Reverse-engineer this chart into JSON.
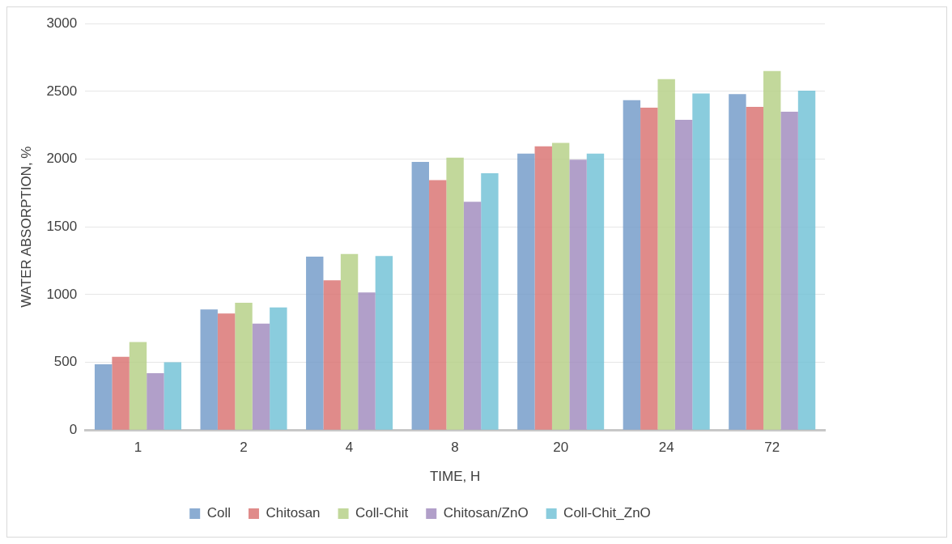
{
  "chart_data": {
    "type": "bar",
    "xlabel": "TIME, H",
    "ylabel": "WATER ABSORPTION, %",
    "categories": [
      "1",
      "2",
      "4",
      "8",
      "20",
      "24",
      "72"
    ],
    "series": [
      {
        "name": "Coll",
        "color": "#7199c8",
        "values": [
          485,
          890,
          1280,
          1980,
          2040,
          2435,
          2480
        ]
      },
      {
        "name": "Chitosan",
        "color": "#d9716f",
        "values": [
          540,
          860,
          1105,
          1845,
          2095,
          2380,
          2385
        ]
      },
      {
        "name": "Coll-Chit",
        "color": "#b4cf84",
        "values": [
          650,
          940,
          1300,
          2010,
          2120,
          2590,
          2650
        ]
      },
      {
        "name": "Chitosan/ZnO",
        "color": "#9f89bd",
        "values": [
          420,
          785,
          1015,
          1685,
          1995,
          2290,
          2350
        ]
      },
      {
        "name": "Coll-Chit_ZnO",
        "color": "#6fc1d5",
        "values": [
          500,
          905,
          1285,
          1895,
          2040,
          2485,
          2505
        ]
      }
    ],
    "ylim": [
      0,
      3000
    ],
    "yticks": [
      0,
      500,
      1000,
      1500,
      2000,
      2500,
      3000
    ],
    "grid": "y",
    "legend": "bottom"
  }
}
